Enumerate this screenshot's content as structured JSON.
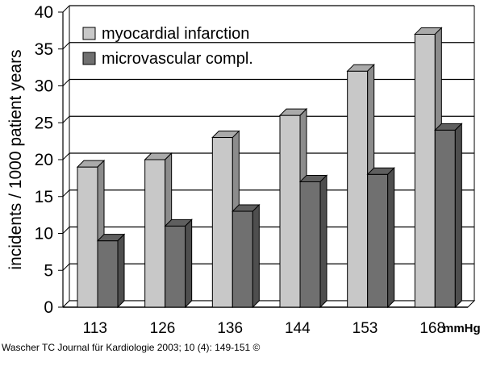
{
  "chart_data": {
    "type": "bar",
    "style": "3d-clustered",
    "categories": [
      "113",
      "126",
      "136",
      "144",
      "153",
      "168"
    ],
    "x_unit": "mmHg",
    "ylabel": "incidents / 1000 patient years",
    "ylim": [
      0,
      40
    ],
    "yticks": [
      0,
      5,
      10,
      15,
      20,
      25,
      30,
      35,
      40
    ],
    "grid": true,
    "legend_position": "top-left",
    "series": [
      {
        "name": "myocardial infarction",
        "values": [
          19,
          20,
          23,
          26,
          32,
          37
        ],
        "color": "#c8c8c8"
      },
      {
        "name": "microvascular compl.",
        "values": [
          9,
          11,
          13,
          17,
          18,
          24
        ],
        "color": "#707070"
      }
    ]
  },
  "source_note": "Wascher TC Journal für Kardiologie 2003; 10 (4): 149-151 ©"
}
